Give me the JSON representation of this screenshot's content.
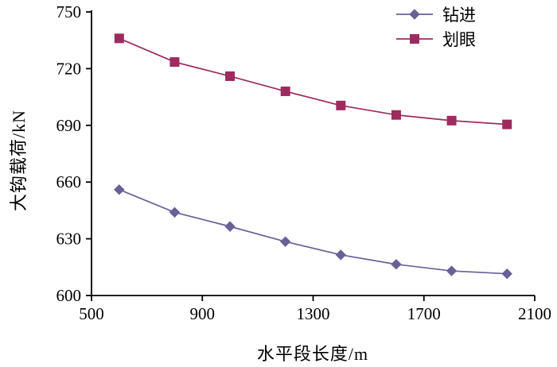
{
  "chart_data": {
    "type": "line",
    "title": "",
    "xlabel": "水平段长度/m",
    "ylabel": "大钩载荷/kN",
    "xlim": [
      500,
      2100
    ],
    "ylim": [
      600,
      750
    ],
    "xticks": [
      500,
      900,
      1300,
      1700,
      2100
    ],
    "yticks": [
      600,
      630,
      660,
      690,
      720,
      750
    ],
    "grid": false,
    "legend_position": "top-right",
    "x": [
      600,
      800,
      1000,
      1200,
      1400,
      1600,
      1800,
      2000
    ],
    "series": [
      {
        "name": "钻进",
        "marker": "diamond",
        "color": "#6B5F97",
        "values": [
          656,
          644,
          636.5,
          628.5,
          621.5,
          616.5,
          613,
          611.5
        ]
      },
      {
        "name": "划眼",
        "marker": "square",
        "color": "#9E2B5E",
        "values": [
          736,
          723.5,
          716,
          708,
          700.5,
          695.5,
          692.5,
          690.5
        ]
      }
    ]
  }
}
